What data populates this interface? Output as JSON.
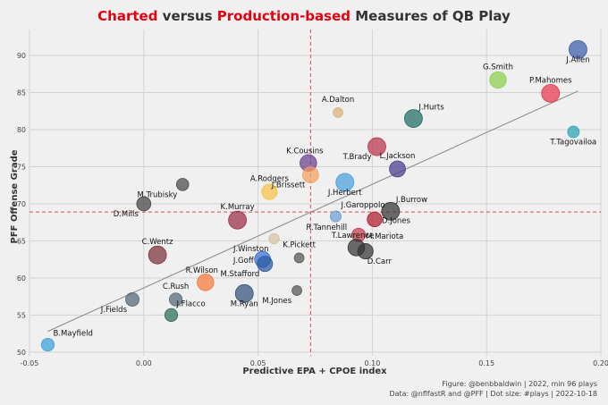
{
  "chart_data": {
    "type": "scatter",
    "title_parts": [
      {
        "text": "Charted",
        "color": "#e3000f"
      },
      {
        "text": " versus ",
        "color": "#333333"
      },
      {
        "text": "Production-based",
        "color": "#e3000f"
      },
      {
        "text": " Measures of QB Play",
        "color": "#333333"
      }
    ],
    "xlabel": "Predictive EPA + CPOE index",
    "ylabel": "PFF Offense Grade",
    "xlim": [
      -0.05,
      0.2
    ],
    "ylim": [
      49.5,
      93.5
    ],
    "xticks": [
      -0.05,
      0.0,
      0.05,
      0.1,
      0.15,
      0.2
    ],
    "xtick_labels": [
      "-0.05",
      "0.00",
      "0.05",
      "0.10",
      "0.15",
      "0.20"
    ],
    "yticks": [
      50,
      55,
      60,
      65,
      70,
      75,
      80,
      85,
      90
    ],
    "ytick_labels": [
      "50",
      "55",
      "60",
      "65",
      "70",
      "75",
      "80",
      "85",
      "90"
    ],
    "ref_lines": {
      "x": 0.073,
      "y": 68.9,
      "color": "#e34a4a"
    },
    "trend_line": {
      "x": [
        -0.042,
        0.19
      ],
      "y": [
        52.8,
        85.2
      ],
      "color": "#888888"
    },
    "points": [
      {
        "name": "J.Allen",
        "x": 0.19,
        "y": 90.8,
        "size": 1.0,
        "color": "#3a5ba9",
        "label_pos": "below"
      },
      {
        "name": "G.Smith",
        "x": 0.155,
        "y": 86.7,
        "size": 0.9,
        "color": "#8bcf4f",
        "label_pos": "above"
      },
      {
        "name": "P.Mahomes",
        "x": 0.178,
        "y": 84.9,
        "size": 1.0,
        "color": "#e8344e",
        "label_pos": "above"
      },
      {
        "name": "A.Dalton",
        "x": 0.085,
        "y": 82.3,
        "size": 0.35,
        "color": "#d9b27a",
        "label_pos": "above"
      },
      {
        "name": "J.Hurts",
        "x": 0.118,
        "y": 81.5,
        "size": 1.0,
        "color": "#1e6b63",
        "label_pos": "above-right"
      },
      {
        "name": "T.Tagovailoa",
        "x": 0.188,
        "y": 79.7,
        "size": 0.5,
        "color": "#2aa3b3",
        "label_pos": "below"
      },
      {
        "name": "T.Brady",
        "x": 0.102,
        "y": 77.7,
        "size": 1.0,
        "color": "#b8324a",
        "label_pos": "below-left"
      },
      {
        "name": "K.Cousins",
        "x": 0.072,
        "y": 75.5,
        "size": 0.9,
        "color": "#6a3f8e",
        "label_pos": "above-left"
      },
      {
        "name": "L.Jackson",
        "x": 0.111,
        "y": 74.7,
        "size": 0.85,
        "color": "#4b3a8a",
        "label_pos": "above"
      },
      {
        "name": "J.Brissett",
        "x": 0.073,
        "y": 73.9,
        "size": 0.85,
        "color": "#f4a05e",
        "label_pos": "below-left"
      },
      {
        "name": "J.Herbert",
        "x": 0.088,
        "y": 72.9,
        "size": 1.0,
        "color": "#4aa0dc",
        "label_pos": "below"
      },
      {
        "name": "M.Trubisky",
        "x": 0.017,
        "y": 72.6,
        "size": 0.55,
        "color": "#4a4a4a",
        "label_pos": "below-left"
      },
      {
        "name": "A.Rodgers",
        "x": 0.055,
        "y": 71.6,
        "size": 0.8,
        "color": "#f5c242",
        "label_pos": "above"
      },
      {
        "name": "D.Mills",
        "x": 0.0,
        "y": 70.0,
        "size": 0.7,
        "color": "#444444",
        "label_pos": "below-left"
      },
      {
        "name": "J.Burrow",
        "x": 0.108,
        "y": 69.0,
        "size": 1.0,
        "color": "#333333",
        "label_pos": "above-right"
      },
      {
        "name": "J.Garoppolo",
        "x": 0.084,
        "y": 68.3,
        "size": 0.45,
        "color": "#6aa0d8",
        "label_pos": "above-right"
      },
      {
        "name": "D.Jones",
        "x": 0.101,
        "y": 67.9,
        "size": 0.75,
        "color": "#b01c2e",
        "label_pos": "right"
      },
      {
        "name": "K.Murray",
        "x": 0.041,
        "y": 67.8,
        "size": 1.0,
        "color": "#9b2c46",
        "label_pos": "above"
      },
      {
        "name": "R.Tannehill",
        "x": 0.08,
        "y": 67.0,
        "size": 0.0,
        "color": "#999999",
        "label_pos": "center"
      },
      {
        "name": "M.Mariota",
        "x": 0.094,
        "y": 65.8,
        "size": 0.65,
        "color": "#c23a4a",
        "label_pos": "right"
      },
      {
        "name": "J.Winston",
        "x": 0.057,
        "y": 65.3,
        "size": 0.4,
        "color": "#d4c4a0",
        "label_pos": "below-left"
      },
      {
        "name": "T.Lawrence",
        "x": 0.093,
        "y": 64.1,
        "size": 0.9,
        "color": "#333333",
        "label_pos": "above-left"
      },
      {
        "name": "D.Carr",
        "x": 0.097,
        "y": 63.6,
        "size": 0.8,
        "color": "#333333",
        "label_pos": "below-right"
      },
      {
        "name": "C.Wentz",
        "x": 0.006,
        "y": 63.1,
        "size": 1.0,
        "color": "#7a2f3a",
        "label_pos": "above"
      },
      {
        "name": "K.Pickett",
        "x": 0.068,
        "y": 62.7,
        "size": 0.35,
        "color": "#555555",
        "label_pos": "above"
      },
      {
        "name": "J.Goff",
        "x": 0.052,
        "y": 62.5,
        "size": 0.85,
        "color": "#3b6fd4",
        "label_pos": "left"
      },
      {
        "name": "M.Stafford",
        "x": 0.053,
        "y": 61.9,
        "size": 0.8,
        "color": "#2a5aa0",
        "label_pos": "below-left"
      },
      {
        "name": "R.Wilson",
        "x": 0.027,
        "y": 59.4,
        "size": 0.9,
        "color": "#f47a3a",
        "label_pos": "above-left"
      },
      {
        "name": "M.Jones",
        "x": 0.067,
        "y": 58.3,
        "size": 0.35,
        "color": "#555555",
        "label_pos": "below-left"
      },
      {
        "name": "M.Ryan",
        "x": 0.044,
        "y": 57.9,
        "size": 1.0,
        "color": "#334f7a",
        "label_pos": "below"
      },
      {
        "name": "C.Rush",
        "x": 0.014,
        "y": 57.1,
        "size": 0.6,
        "color": "#556677",
        "label_pos": "above"
      },
      {
        "name": "J.Fields",
        "x": -0.005,
        "y": 57.1,
        "size": 0.65,
        "color": "#556677",
        "label_pos": "below-left"
      },
      {
        "name": "J.Flacco",
        "x": 0.012,
        "y": 55.0,
        "size": 0.6,
        "color": "#2f6b5a",
        "label_pos": "above-right"
      },
      {
        "name": "B.Mayfield",
        "x": -0.042,
        "y": 51.0,
        "size": 0.6,
        "color": "#3aa0d8",
        "label_pos": "above-right"
      }
    ],
    "footnote_lines": [
      "Figure: @benbbaldwin | 2022, min 96 plays",
      "Data: @nflfastR and @PFF | Dot size: #plays | 2022-10-18"
    ]
  }
}
